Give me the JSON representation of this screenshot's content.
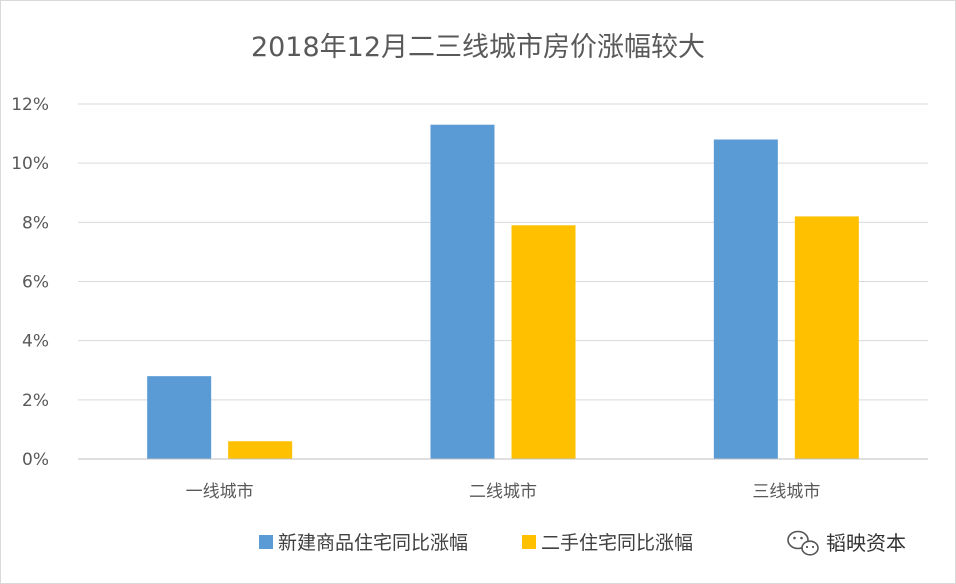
{
  "chart_data": {
    "type": "bar",
    "title": "2018年12月二三线城市房价涨幅较大",
    "categories": [
      "一线城市",
      "二线城市",
      "三线城市"
    ],
    "series": [
      {
        "name": "新建商品住宅同比涨幅",
        "color": "#5b9bd5",
        "values": [
          2.8,
          11.3,
          10.8
        ]
      },
      {
        "name": "二手住宅同比涨幅",
        "color": "#ffc000",
        "values": [
          0.6,
          7.9,
          8.2
        ]
      }
    ],
    "ylim": [
      0,
      12
    ],
    "yticks": [
      "0%",
      "2%",
      "4%",
      "6%",
      "8%",
      "10%",
      "12%"
    ],
    "value_unit": "%",
    "grid": true,
    "legend_position": "bottom"
  },
  "watermark": {
    "text": "韬映资本",
    "icon": "wechat-icon"
  }
}
